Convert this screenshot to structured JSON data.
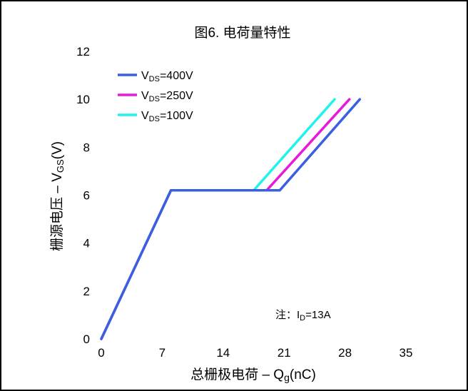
{
  "chart_data": {
    "type": "line",
    "title": "图6. 电荷量特性",
    "xlabel": "总栅极电荷 – Qg(nC)",
    "ylabel": "栅源电压 – VGS(V)",
    "xlim": [
      0,
      35
    ],
    "ylim": [
      0,
      12
    ],
    "xticks": [
      "0",
      "7",
      "14",
      "21",
      "28",
      "35"
    ],
    "yticks": [
      "0",
      "2",
      "4",
      "6",
      "8",
      "10",
      "12"
    ],
    "grid": false,
    "legend_position": "top-left",
    "annotation": "注：ID=13A",
    "series": [
      {
        "name": "VDS=400V",
        "color": "#3a5fe0",
        "points": [
          [
            0,
            0
          ],
          [
            8,
            6.2
          ],
          [
            20.5,
            6.2
          ],
          [
            29.7,
            10
          ]
        ]
      },
      {
        "name": "VDS=250V",
        "color": "#e81ad9",
        "points": [
          [
            0,
            0
          ],
          [
            8,
            6.2
          ],
          [
            19,
            6.2
          ],
          [
            28.5,
            10
          ]
        ]
      },
      {
        "name": "VDS=100V",
        "color": "#22f2ee",
        "points": [
          [
            0,
            0
          ],
          [
            8,
            6.2
          ],
          [
            17.5,
            6.2
          ],
          [
            26.8,
            10
          ]
        ]
      }
    ]
  }
}
